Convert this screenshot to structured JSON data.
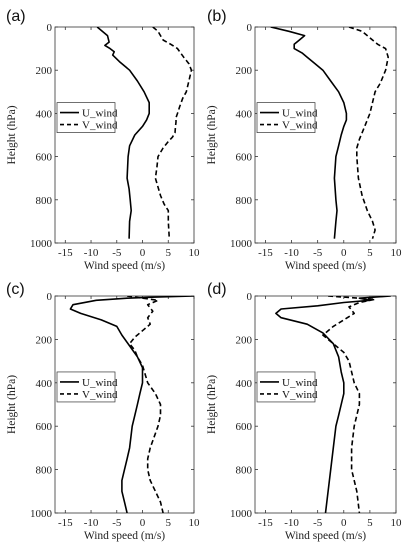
{
  "chart_data": [
    {
      "type": "line",
      "panel_label": "(a)",
      "xlabel": "Wind speed (m/s)",
      "ylabel": "Height (hPa)",
      "xlim": [
        -17,
        10
      ],
      "ylim": [
        0,
        1000
      ],
      "y_reversed": true,
      "xticks": [
        -15,
        -10,
        -5,
        0,
        5,
        10
      ],
      "yticks": [
        0,
        200,
        400,
        600,
        800,
        1000
      ],
      "legend_position": "middle-left",
      "series": [
        {
          "name": "U_wind",
          "style": "solid",
          "x": [
            -8.8,
            -6.8,
            -6.5,
            -7.3,
            -6.3,
            -5.5,
            -5.8,
            -4.5,
            -2.5,
            -1,
            0.3,
            1.3,
            1.3,
            0.8,
            0,
            -1.5,
            -2.5,
            -2.8,
            -3,
            -2.6,
            -2.4,
            -2.2,
            -2.5,
            -2.6
          ],
          "y": [
            0,
            40,
            70,
            85,
            100,
            115,
            130,
            160,
            200,
            250,
            300,
            350,
            400,
            430,
            460,
            500,
            550,
            600,
            700,
            750,
            800,
            850,
            900,
            980
          ]
        },
        {
          "name": "V_wind",
          "style": "dashed",
          "x": [
            2,
            3,
            3.5,
            4,
            5.5,
            6.8,
            8,
            9,
            9.5,
            9,
            8.5,
            7.8,
            7.2,
            6.8,
            6.5,
            6.5,
            6.4,
            6.3,
            5.8,
            5,
            4,
            3,
            2.8,
            2.5,
            3.5,
            4.2,
            5,
            5,
            5.2
          ],
          "y": [
            0,
            20,
            40,
            60,
            80,
            100,
            140,
            170,
            200,
            250,
            300,
            330,
            370,
            400,
            420,
            440,
            460,
            490,
            510,
            530,
            560,
            600,
            650,
            700,
            780,
            820,
            850,
            900,
            980
          ]
        }
      ]
    },
    {
      "type": "line",
      "panel_label": "(b)",
      "xlabel": "Wind speed (m/s)",
      "ylabel": "Height (hPa)",
      "xlim": [
        -17,
        10
      ],
      "ylim": [
        0,
        1000
      ],
      "y_reversed": true,
      "xticks": [
        -15,
        -10,
        -5,
        0,
        5,
        10
      ],
      "yticks": [
        0,
        200,
        400,
        600,
        800,
        1000
      ],
      "legend_position": "middle-left",
      "series": [
        {
          "name": "U_wind",
          "style": "solid",
          "x": [
            -14,
            -10.5,
            -7.5,
            -8.5,
            -9.5,
            -9.5,
            -8,
            -7,
            -5.5,
            -4,
            -2.5,
            -1,
            0,
            0.5,
            0.5,
            0,
            -0.5,
            -1,
            -1.5,
            -1.8,
            -1.5,
            -1.3,
            -1.5,
            -1.8
          ],
          "y": [
            0,
            20,
            40,
            60,
            80,
            100,
            120,
            140,
            170,
            200,
            250,
            300,
            350,
            400,
            430,
            460,
            500,
            550,
            600,
            700,
            800,
            850,
            900,
            980
          ]
        },
        {
          "name": "V_wind",
          "style": "dashed",
          "x": [
            1,
            3.5,
            4.5,
            5.5,
            6.5,
            8,
            8.5,
            8,
            7,
            6,
            5.5,
            5,
            4.5,
            4,
            3.5,
            3,
            2.5,
            2.5,
            2.8,
            3.5,
            4.5,
            5.5,
            6,
            5.5
          ],
          "y": [
            0,
            20,
            40,
            60,
            80,
            100,
            140,
            200,
            260,
            300,
            350,
            400,
            430,
            460,
            490,
            520,
            560,
            600,
            700,
            780,
            850,
            900,
            940,
            980
          ]
        }
      ]
    },
    {
      "type": "line",
      "panel_label": "(c)",
      "xlabel": "Wind speed (m/s)",
      "ylabel": "Height (hPa)",
      "xlim": [
        -17,
        10
      ],
      "ylim": [
        0,
        1000
      ],
      "y_reversed": true,
      "xticks": [
        -15,
        -10,
        -5,
        0,
        5,
        10
      ],
      "yticks": [
        0,
        200,
        400,
        600,
        800,
        1000
      ],
      "legend_position": "middle-left",
      "series": [
        {
          "name": "U_wind",
          "style": "solid",
          "x": [
            10,
            2.5,
            -3,
            -9,
            -13.5,
            -14,
            -12,
            -8,
            -5,
            -4,
            -2.5,
            -1,
            0,
            0,
            -0.5,
            -1,
            -1.5,
            -2,
            -2.5,
            -3,
            -3.5,
            -4,
            -4,
            -3.5,
            -3
          ],
          "y": [
            0,
            5,
            10,
            20,
            40,
            60,
            80,
            110,
            140,
            180,
            230,
            280,
            330,
            400,
            450,
            500,
            550,
            600,
            700,
            750,
            800,
            850,
            900,
            950,
            1000
          ]
        },
        {
          "name": "V_wind",
          "style": "dashed",
          "x": [
            -3,
            3,
            1,
            2,
            1,
            1.5,
            0,
            -1.5,
            -2.5,
            -1.5,
            -1,
            0,
            0.5,
            1,
            2.5,
            3.5,
            3.5,
            3,
            1.5,
            1,
            1,
            1.5,
            2.5,
            3.5,
            4
          ],
          "y": [
            0,
            20,
            40,
            70,
            100,
            130,
            160,
            190,
            220,
            250,
            280,
            320,
            360,
            400,
            450,
            500,
            550,
            600,
            700,
            750,
            800,
            850,
            900,
            950,
            1000
          ]
        }
      ]
    },
    {
      "type": "line",
      "panel_label": "(d)",
      "xlabel": "Wind speed (m/s)",
      "ylabel": "Height (hPa)",
      "xlim": [
        -17,
        10
      ],
      "ylim": [
        0,
        1000
      ],
      "y_reversed": true,
      "xticks": [
        -15,
        -10,
        -5,
        0,
        5,
        10
      ],
      "yticks": [
        0,
        200,
        400,
        600,
        800,
        1000
      ],
      "legend_position": "middle-left",
      "series": [
        {
          "name": "U_wind",
          "style": "solid",
          "x": [
            9,
            3,
            5,
            0,
            -5,
            -12,
            -13,
            -12,
            -7,
            -4,
            -2,
            -1,
            -0.5,
            0,
            0,
            -0.5,
            -1,
            -1.5,
            -2,
            -2.5,
            -3,
            -3.5
          ],
          "y": [
            0,
            10,
            20,
            30,
            45,
            60,
            80,
            100,
            130,
            170,
            220,
            280,
            350,
            400,
            450,
            500,
            550,
            600,
            700,
            800,
            900,
            1000
          ]
        },
        {
          "name": "V_wind",
          "style": "dashed",
          "x": [
            -3,
            6,
            3,
            1,
            2,
            0,
            -2,
            -4,
            -2,
            0,
            1,
            1.5,
            2,
            3,
            3,
            2.5,
            2,
            1.5,
            1.5,
            2,
            2.5,
            3
          ],
          "y": [
            0,
            15,
            30,
            50,
            80,
            110,
            140,
            180,
            220,
            260,
            300,
            350,
            400,
            450,
            500,
            550,
            600,
            700,
            800,
            850,
            900,
            1000
          ]
        }
      ]
    }
  ]
}
